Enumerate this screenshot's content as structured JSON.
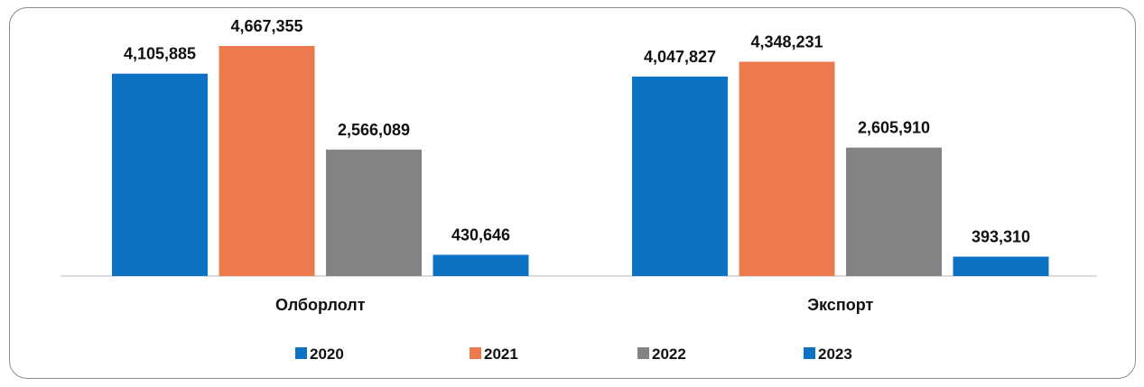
{
  "chart_data": {
    "type": "bar",
    "title": "",
    "xlabel": "",
    "ylabel": "",
    "categories": [
      "Олборлолт",
      "Экспорт"
    ],
    "series": [
      {
        "name": "2020",
        "color": "#0E72C4",
        "values": [
          4105885,
          4047827
        ],
        "labels": [
          "4,105,885",
          "4,047,827"
        ]
      },
      {
        "name": "2021",
        "color": "#ED7A4D",
        "values": [
          4667355,
          4348231
        ],
        "labels": [
          "4,667,355",
          "4,348,231"
        ]
      },
      {
        "name": "2022",
        "color": "#838383",
        "values": [
          2566089,
          2605910
        ],
        "labels": [
          "2,566,089",
          "2,605,910"
        ]
      },
      {
        "name": "2023",
        "color": "#0E72C4",
        "values": [
          430646,
          393310
        ],
        "labels": [
          "430,646",
          "393,310"
        ]
      }
    ],
    "ylim": [
      0,
      4667355
    ],
    "grid": false,
    "legend": "bottom"
  }
}
